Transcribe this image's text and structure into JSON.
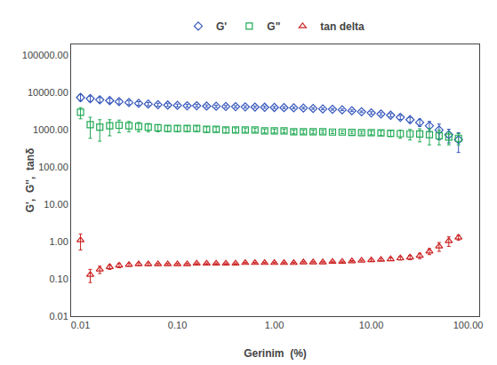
{
  "chart_data": {
    "type": "scatter",
    "xlabel": "Gerinim  (%)",
    "ylabel": "G',  G'',  tanδ",
    "log": true,
    "grid": false,
    "legend": "top",
    "xlim": [
      0.008,
      130
    ],
    "ylim": [
      0.01,
      200000
    ],
    "xticks": [
      0.01,
      {
        "value": 0.1,
        "label": "0.10"
      },
      {
        "value": 1,
        "label": "1.00"
      },
      {
        "value": 10,
        "label": "10.00"
      },
      {
        "value": 100,
        "label": "100.00"
      }
    ],
    "yticks": [
      0.01,
      {
        "value": 0.1,
        "label": "0.10"
      },
      {
        "value": 1,
        "label": "1.00"
      },
      {
        "value": 10,
        "label": "10.00"
      },
      {
        "value": 100,
        "label": "100.00"
      },
      {
        "value": 1000,
        "label": "1000.00"
      },
      {
        "value": 10000,
        "label": "10000.00"
      },
      {
        "value": 100000,
        "label": "100000.00"
      }
    ],
    "x": [
      0.01,
      0.0126,
      0.0158,
      0.02,
      0.025,
      0.0316,
      0.0398,
      0.05,
      0.063,
      0.0794,
      0.1,
      0.126,
      0.158,
      0.2,
      0.251,
      0.316,
      0.398,
      0.501,
      0.631,
      0.794,
      1.0,
      1.259,
      1.585,
      1.995,
      2.512,
      3.162,
      3.981,
      5.012,
      6.31,
      7.943,
      10.0,
      12.59,
      15.85,
      19.95,
      25.12,
      31.62,
      39.81,
      50.12,
      63.1,
      79.43
    ],
    "series": [
      {
        "name": "G'",
        "color": "#3355bb",
        "marker": "diamond",
        "values": [
          7500,
          7000,
          6500,
          6200,
          5800,
          5500,
          5200,
          5000,
          4800,
          4700,
          4600,
          4500,
          4500,
          4400,
          4350,
          4300,
          4250,
          4200,
          4150,
          4100,
          4050,
          4000,
          3950,
          3900,
          3800,
          3700,
          3600,
          3500,
          3300,
          3100,
          2900,
          2700,
          2500,
          2200,
          1900,
          1600,
          1300,
          1000,
          750,
          550
        ],
        "yerr_lo": [
          1500,
          1200,
          1000,
          900,
          800,
          700,
          600,
          500,
          450,
          400,
          380,
          350,
          330,
          310,
          300,
          290,
          280,
          270,
          260,
          250,
          240,
          230,
          220,
          210,
          200,
          190,
          180,
          170,
          160,
          150,
          200,
          220,
          250,
          280,
          300,
          350,
          400,
          450,
          300,
          300
        ],
        "yerr_hi": [
          1500,
          1200,
          1000,
          900,
          800,
          700,
          600,
          500,
          450,
          400,
          380,
          350,
          330,
          310,
          300,
          290,
          280,
          270,
          260,
          250,
          240,
          230,
          220,
          210,
          200,
          190,
          180,
          170,
          160,
          150,
          200,
          220,
          250,
          280,
          300,
          350,
          400,
          450,
          300,
          300
        ]
      },
      {
        "name": "G\"",
        "color": "#22aa55",
        "marker": "square",
        "values": [
          3000,
          1400,
          1200,
          1300,
          1350,
          1300,
          1250,
          1200,
          1150,
          1100,
          1100,
          1100,
          1100,
          1050,
          1050,
          1000,
          1000,
          1000,
          1000,
          950,
          950,
          950,
          900,
          900,
          900,
          900,
          880,
          880,
          860,
          850,
          850,
          840,
          820,
          800,
          790,
          780,
          750,
          700,
          650,
          600
        ],
        "yerr_lo": [
          1000,
          800,
          700,
          600,
          500,
          400,
          350,
          300,
          250,
          200,
          200,
          190,
          180,
          170,
          160,
          150,
          140,
          130,
          120,
          110,
          100,
          100,
          100,
          90,
          90,
          80,
          80,
          80,
          70,
          70,
          100,
          120,
          150,
          200,
          250,
          300,
          350,
          300,
          250,
          200
        ],
        "yerr_hi": [
          1000,
          800,
          700,
          600,
          500,
          400,
          350,
          300,
          250,
          200,
          200,
          190,
          180,
          170,
          160,
          150,
          140,
          130,
          120,
          110,
          100,
          100,
          100,
          90,
          90,
          80,
          80,
          80,
          70,
          70,
          100,
          120,
          150,
          200,
          250,
          300,
          350,
          300,
          250,
          200
        ]
      },
      {
        "name": "tan delta",
        "color": "#cc2222",
        "marker": "triangle-up",
        "values": [
          1.1,
          0.13,
          0.18,
          0.21,
          0.23,
          0.24,
          0.25,
          0.25,
          0.25,
          0.25,
          0.25,
          0.25,
          0.26,
          0.26,
          0.26,
          0.26,
          0.26,
          0.27,
          0.27,
          0.27,
          0.27,
          0.27,
          0.27,
          0.28,
          0.28,
          0.28,
          0.29,
          0.29,
          0.3,
          0.31,
          0.32,
          0.33,
          0.34,
          0.36,
          0.38,
          0.42,
          0.55,
          0.75,
          1.05,
          1.3
        ],
        "yerr_lo": [
          0.5,
          0.05,
          0.04,
          0.03,
          0.03,
          0.02,
          0.02,
          0.02,
          0.01,
          0.01,
          0.01,
          0.01,
          0.01,
          0.01,
          0.01,
          0.01,
          0.01,
          0.01,
          0.01,
          0.01,
          0.01,
          0.01,
          0.01,
          0.01,
          0.01,
          0.01,
          0.01,
          0.01,
          0.01,
          0.01,
          0.02,
          0.02,
          0.03,
          0.04,
          0.05,
          0.07,
          0.1,
          0.2,
          0.3,
          0.2
        ],
        "yerr_hi": [
          0.5,
          0.05,
          0.04,
          0.03,
          0.03,
          0.02,
          0.02,
          0.02,
          0.01,
          0.01,
          0.01,
          0.01,
          0.01,
          0.01,
          0.01,
          0.01,
          0.01,
          0.01,
          0.01,
          0.01,
          0.01,
          0.01,
          0.01,
          0.01,
          0.01,
          0.01,
          0.01,
          0.01,
          0.01,
          0.01,
          0.02,
          0.02,
          0.03,
          0.04,
          0.05,
          0.07,
          0.1,
          0.2,
          0.3,
          0.2
        ]
      }
    ]
  }
}
